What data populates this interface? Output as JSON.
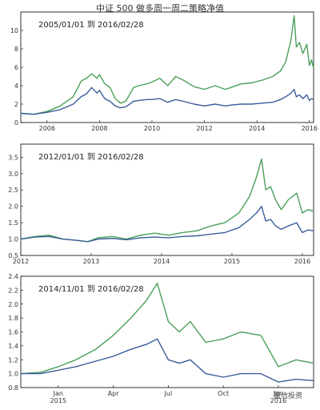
{
  "title": "中证 500 做多周一周二策略净值",
  "watermark": "量信投资",
  "colors": {
    "green": "#4aa05a",
    "blue": "#3a5d9b",
    "axis": "#000000"
  },
  "chart_data": [
    {
      "type": "line",
      "range_label": "2005/01/01 到 2016/02/28",
      "ylim": [
        0,
        12
      ],
      "yticks": [
        "0",
        "2",
        "4",
        "6",
        "8",
        "10"
      ],
      "ytick_values": [
        0,
        2,
        4,
        6,
        8,
        10
      ],
      "xlim": [
        2005.0,
        2016.16
      ],
      "xticks": [
        "2006",
        "2008",
        "2010",
        "2012",
        "2014",
        "2016"
      ],
      "xtick_values": [
        2006,
        2008,
        2010,
        2012,
        2014,
        2016
      ],
      "series": [
        {
          "color_key": "green",
          "x": [
            2005.0,
            2005.5,
            2006.0,
            2006.5,
            2007.0,
            2007.3,
            2007.5,
            2007.7,
            2007.9,
            2008.0,
            2008.2,
            2008.4,
            2008.6,
            2008.8,
            2009.0,
            2009.3,
            2009.5,
            2009.8,
            2010.0,
            2010.3,
            2010.6,
            2010.9,
            2011.2,
            2011.6,
            2012.0,
            2012.4,
            2012.8,
            2013.0,
            2013.4,
            2013.8,
            2014.2,
            2014.6,
            2014.9,
            2015.1,
            2015.3,
            2015.42,
            2015.5,
            2015.62,
            2015.75,
            2015.9,
            2016.0,
            2016.08,
            2016.16
          ],
          "y": [
            1.0,
            0.9,
            1.2,
            1.8,
            2.8,
            4.5,
            4.8,
            5.3,
            4.8,
            5.2,
            4.2,
            3.8,
            2.6,
            2.1,
            2.3,
            3.8,
            4.0,
            4.2,
            4.4,
            4.8,
            4.0,
            5.0,
            4.6,
            3.9,
            3.6,
            4.0,
            3.6,
            3.8,
            4.2,
            4.3,
            4.6,
            5.0,
            5.6,
            6.6,
            9.0,
            11.6,
            8.2,
            8.7,
            7.5,
            8.5,
            6.2,
            6.8,
            5.9
          ]
        },
        {
          "color_key": "blue",
          "x": [
            2005.0,
            2005.5,
            2006.0,
            2006.5,
            2007.0,
            2007.3,
            2007.5,
            2007.7,
            2007.9,
            2008.0,
            2008.2,
            2008.4,
            2008.6,
            2008.8,
            2009.0,
            2009.3,
            2009.5,
            2009.8,
            2010.0,
            2010.3,
            2010.6,
            2010.9,
            2011.2,
            2011.6,
            2012.0,
            2012.4,
            2012.8,
            2013.0,
            2013.4,
            2013.8,
            2014.2,
            2014.6,
            2014.9,
            2015.1,
            2015.3,
            2015.42,
            2015.5,
            2015.62,
            2015.75,
            2015.9,
            2016.0,
            2016.08,
            2016.16
          ],
          "y": [
            1.0,
            0.9,
            1.1,
            1.4,
            2.0,
            2.8,
            3.1,
            3.8,
            3.2,
            3.5,
            2.6,
            2.3,
            1.8,
            1.6,
            1.7,
            2.3,
            2.4,
            2.5,
            2.5,
            2.6,
            2.2,
            2.5,
            2.3,
            2.0,
            1.8,
            2.0,
            1.8,
            1.9,
            2.0,
            2.0,
            2.1,
            2.2,
            2.5,
            2.8,
            3.2,
            3.6,
            2.8,
            3.0,
            2.6,
            3.0,
            2.4,
            2.6,
            2.5
          ]
        }
      ]
    },
    {
      "type": "line",
      "range_label": "2012/01/01 到 2016/02/28",
      "ylim": [
        0.5,
        3.9
      ],
      "yticks": [
        "0.5",
        "1.0",
        "1.5",
        "2.0",
        "2.5",
        "3.0",
        "3.5"
      ],
      "ytick_values": [
        0.5,
        1.0,
        1.5,
        2.0,
        2.5,
        3.0,
        3.5
      ],
      "xlim": [
        2012.0,
        2016.16
      ],
      "xticks": [
        "2012",
        "2013",
        "2014",
        "2015",
        "2016"
      ],
      "xtick_values": [
        2012,
        2013,
        2014,
        2015,
        2016
      ],
      "series": [
        {
          "color_key": "green",
          "x": [
            2012.0,
            2012.2,
            2012.4,
            2012.6,
            2012.8,
            2012.95,
            2013.1,
            2013.3,
            2013.5,
            2013.7,
            2013.9,
            2014.1,
            2014.3,
            2014.5,
            2014.7,
            2014.9,
            2015.1,
            2015.25,
            2015.35,
            2015.42,
            2015.48,
            2015.55,
            2015.62,
            2015.7,
            2015.8,
            2015.92,
            2016.0,
            2016.08,
            2016.16
          ],
          "y": [
            1.0,
            1.08,
            1.12,
            1.0,
            0.96,
            0.92,
            1.04,
            1.08,
            1.0,
            1.12,
            1.18,
            1.12,
            1.2,
            1.25,
            1.4,
            1.5,
            1.8,
            2.3,
            2.9,
            3.45,
            2.5,
            2.6,
            2.2,
            1.9,
            2.2,
            2.4,
            1.8,
            1.9,
            1.85
          ]
        },
        {
          "color_key": "blue",
          "x": [
            2012.0,
            2012.2,
            2012.4,
            2012.6,
            2012.8,
            2012.95,
            2013.1,
            2013.3,
            2013.5,
            2013.7,
            2013.9,
            2014.1,
            2014.3,
            2014.5,
            2014.7,
            2014.9,
            2015.1,
            2015.25,
            2015.35,
            2015.42,
            2015.48,
            2015.55,
            2015.62,
            2015.7,
            2015.8,
            2015.92,
            2016.0,
            2016.08,
            2016.16
          ],
          "y": [
            1.0,
            1.06,
            1.08,
            1.0,
            0.96,
            0.92,
            1.0,
            1.02,
            0.98,
            1.04,
            1.06,
            1.04,
            1.08,
            1.1,
            1.15,
            1.2,
            1.35,
            1.6,
            1.8,
            2.0,
            1.55,
            1.6,
            1.4,
            1.3,
            1.4,
            1.5,
            1.2,
            1.28,
            1.25
          ]
        }
      ]
    },
    {
      "type": "line",
      "range_label": "2014/11/01 到 2016/02/28",
      "ylim": [
        0.8,
        2.4
      ],
      "yticks": [
        "0.8",
        "1.0",
        "1.2",
        "1.4",
        "1.6",
        "1.8",
        "2.0",
        "2.2",
        "2.4"
      ],
      "ytick_values": [
        0.8,
        1.0,
        1.2,
        1.4,
        1.6,
        1.8,
        2.0,
        2.2,
        2.4
      ],
      "xlim": [
        2014.83,
        2016.16
      ],
      "xticks": [
        "Jan\n2015",
        "Apr",
        "Jul",
        "Oct",
        "Jan\n2016"
      ],
      "xtick_values": [
        2015.0,
        2015.25,
        2015.5,
        2015.75,
        2016.0
      ],
      "series": [
        {
          "color_key": "green",
          "x": [
            2014.83,
            2014.92,
            2015.0,
            2015.08,
            2015.17,
            2015.25,
            2015.33,
            2015.4,
            2015.45,
            2015.5,
            2015.55,
            2015.6,
            2015.67,
            2015.75,
            2015.83,
            2015.92,
            2016.0,
            2016.08,
            2016.16
          ],
          "y": [
            1.0,
            1.02,
            1.1,
            1.2,
            1.35,
            1.55,
            1.8,
            2.05,
            2.3,
            1.75,
            1.6,
            1.75,
            1.45,
            1.5,
            1.6,
            1.55,
            1.1,
            1.2,
            1.15
          ]
        },
        {
          "color_key": "blue",
          "x": [
            2014.83,
            2014.92,
            2015.0,
            2015.08,
            2015.17,
            2015.25,
            2015.33,
            2015.4,
            2015.45,
            2015.5,
            2015.55,
            2015.6,
            2015.67,
            2015.75,
            2015.83,
            2015.92,
            2016.0,
            2016.08,
            2016.16
          ],
          "y": [
            1.0,
            1.0,
            1.05,
            1.1,
            1.18,
            1.25,
            1.35,
            1.42,
            1.5,
            1.2,
            1.15,
            1.2,
            1.0,
            0.95,
            1.0,
            1.0,
            0.88,
            0.92,
            0.9
          ]
        }
      ]
    }
  ]
}
